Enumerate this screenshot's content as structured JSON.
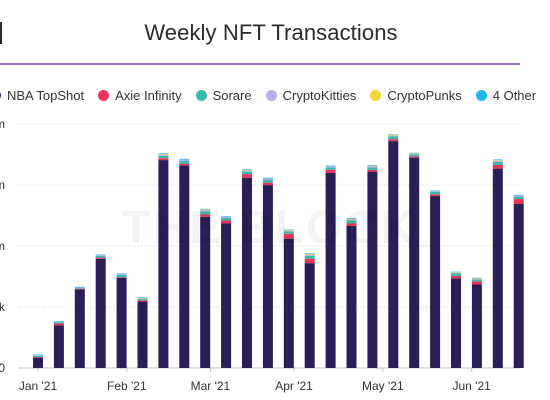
{
  "chart_data": {
    "type": "bar",
    "stacked": true,
    "title": "Weekly NFT Transactions",
    "xlabel": "",
    "ylabel": "",
    "grid": true,
    "legend_position": "top",
    "y_tick_labels": [
      "0",
      "k",
      "m",
      "m",
      "m"
    ],
    "y_tick_values": [
      0,
      1,
      2,
      3,
      4
    ],
    "ylim": [
      0,
      4.1
    ],
    "x_tick_labels": [
      {
        "label": "Jan '21",
        "index": 0
      },
      {
        "label": "Feb '21",
        "index": 4.25
      },
      {
        "label": "Mar '21",
        "index": 8.25
      },
      {
        "label": "Apr '21",
        "index": 12.25
      },
      {
        "label": "May '21",
        "index": 16.5
      },
      {
        "label": "Jun '21",
        "index": 20.75
      }
    ],
    "bar_count": 24,
    "series": [
      {
        "name": "NBA TopShot",
        "color": "#2b1d55",
        "values": [
          0.17,
          0.7,
          1.29,
          1.79,
          1.48,
          1.09,
          3.41,
          3.32,
          2.48,
          2.37,
          3.12,
          3.0,
          2.12,
          1.72,
          3.2,
          2.33,
          3.22,
          3.72,
          3.45,
          2.82,
          1.47,
          1.37,
          3.27,
          2.69
        ]
      },
      {
        "name": "Axie Infinity",
        "color": "#e8325a",
        "values": [
          0.01,
          0.03,
          0.01,
          0.02,
          0.01,
          0.02,
          0.03,
          0.03,
          0.04,
          0.05,
          0.06,
          0.04,
          0.08,
          0.07,
          0.05,
          0.04,
          0.03,
          0.03,
          0.02,
          0.03,
          0.04,
          0.05,
          0.06,
          0.08
        ]
      },
      {
        "name": "Sorare",
        "color": "#3ab8a8",
        "values": [
          0.02,
          0.02,
          0.01,
          0.03,
          0.04,
          0.02,
          0.04,
          0.05,
          0.05,
          0.04,
          0.04,
          0.05,
          0.04,
          0.05,
          0.04,
          0.05,
          0.04,
          0.05,
          0.03,
          0.04,
          0.04,
          0.03,
          0.05,
          0.04
        ]
      },
      {
        "name": "CryptoKitties",
        "color": "#b9aef0",
        "values": [
          0.01,
          0.01,
          0.01,
          0.01,
          0.01,
          0.01,
          0.02,
          0.02,
          0.02,
          0.02,
          0.02,
          0.02,
          0.01,
          0.02,
          0.02,
          0.02,
          0.02,
          0.01,
          0.01,
          0.01,
          0.01,
          0.01,
          0.02,
          0.02
        ]
      },
      {
        "name": "CryptoPunks",
        "color": "#f2d338",
        "values": [
          0.0,
          0.0,
          0.0,
          0.0,
          0.0,
          0.01,
          0.01,
          0.0,
          0.01,
          0.0,
          0.01,
          0.0,
          0.01,
          0.01,
          0.0,
          0.01,
          0.01,
          0.01,
          0.01,
          0.0,
          0.01,
          0.01,
          0.01,
          0.0
        ]
      },
      {
        "name": "4 Other",
        "color": "#1fb6e9",
        "values": [
          0.01,
          0.01,
          0.01,
          0.01,
          0.01,
          0.01,
          0.01,
          0.01,
          0.01,
          0.01,
          0.01,
          0.01,
          0.01,
          0.01,
          0.01,
          0.01,
          0.01,
          0.01,
          0.01,
          0.01,
          0.01,
          0.01,
          0.01,
          0.01
        ]
      }
    ],
    "watermark": "THE BLOCK"
  }
}
